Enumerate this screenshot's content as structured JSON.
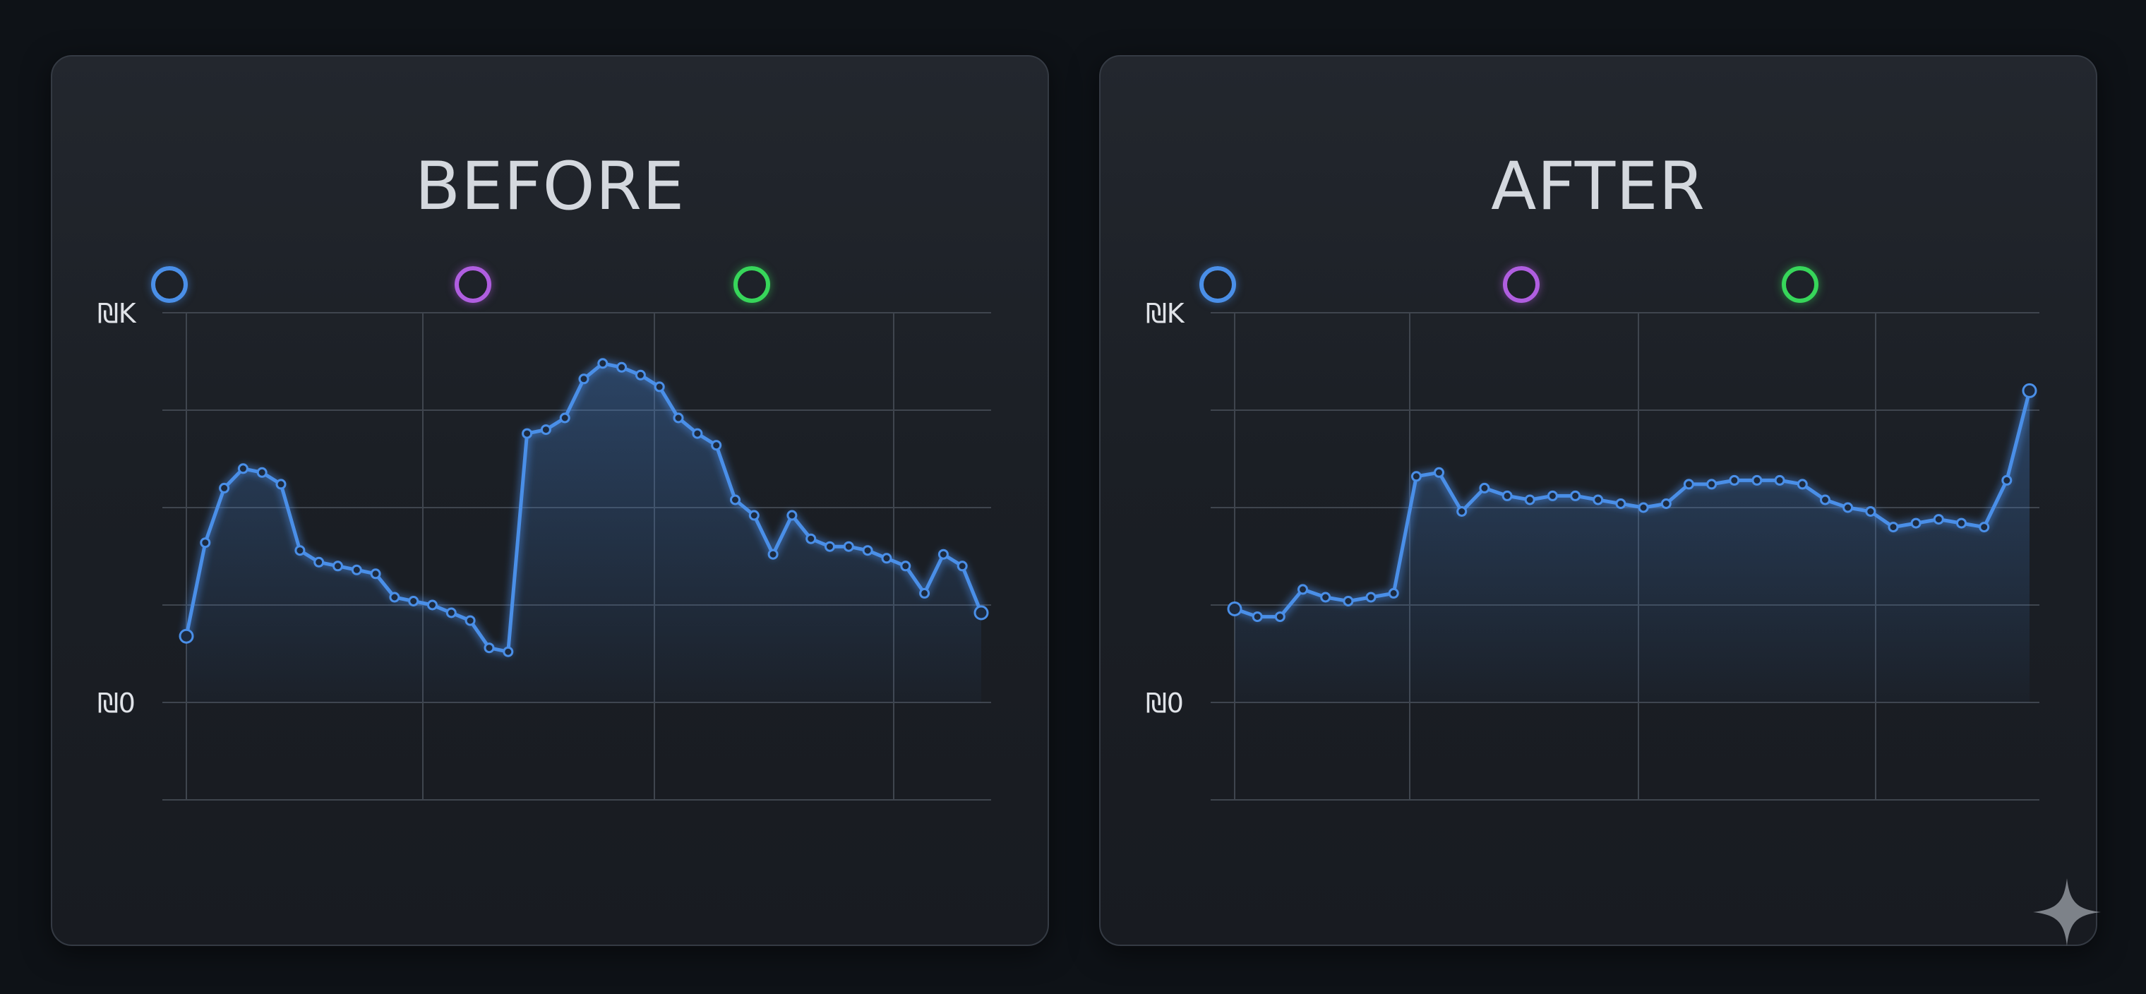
{
  "colors": {
    "line": "#4a8fe8",
    "legend": [
      "#4a8fe8",
      "#b05ee0",
      "#37d65a"
    ]
  },
  "chart_data": [
    {
      "type": "line",
      "title": "BEFORE",
      "y_ticks": [
        "₪0",
        "₪K"
      ],
      "ylim": [
        0,
        1
      ],
      "grid": true,
      "legend_markers": 3,
      "series": [
        {
          "values": [
            0.17,
            0.41,
            0.55,
            0.6,
            0.59,
            0.56,
            0.39,
            0.36,
            0.35,
            0.34,
            0.33,
            0.27,
            0.26,
            0.25,
            0.23,
            0.21,
            0.14,
            0.13,
            0.69,
            0.7,
            0.73,
            0.83,
            0.87,
            0.86,
            0.84,
            0.81,
            0.73,
            0.69,
            0.66,
            0.52,
            0.48,
            0.38,
            0.48,
            0.42,
            0.4,
            0.4,
            0.39,
            0.37,
            0.35,
            0.28,
            0.38,
            0.35,
            0.23
          ]
        }
      ]
    },
    {
      "type": "line",
      "title": "AFTER",
      "y_ticks": [
        "₪0",
        "₪K"
      ],
      "ylim": [
        0,
        1
      ],
      "grid": true,
      "legend_markers": 3,
      "series": [
        {
          "values": [
            0.24,
            0.22,
            0.22,
            0.29,
            0.27,
            0.26,
            0.27,
            0.28,
            0.58,
            0.59,
            0.49,
            0.55,
            0.53,
            0.52,
            0.53,
            0.53,
            0.52,
            0.51,
            0.5,
            0.51,
            0.56,
            0.56,
            0.57,
            0.57,
            0.57,
            0.56,
            0.52,
            0.5,
            0.49,
            0.45,
            0.46,
            0.47,
            0.46,
            0.45,
            0.57,
            0.8
          ]
        }
      ]
    }
  ]
}
